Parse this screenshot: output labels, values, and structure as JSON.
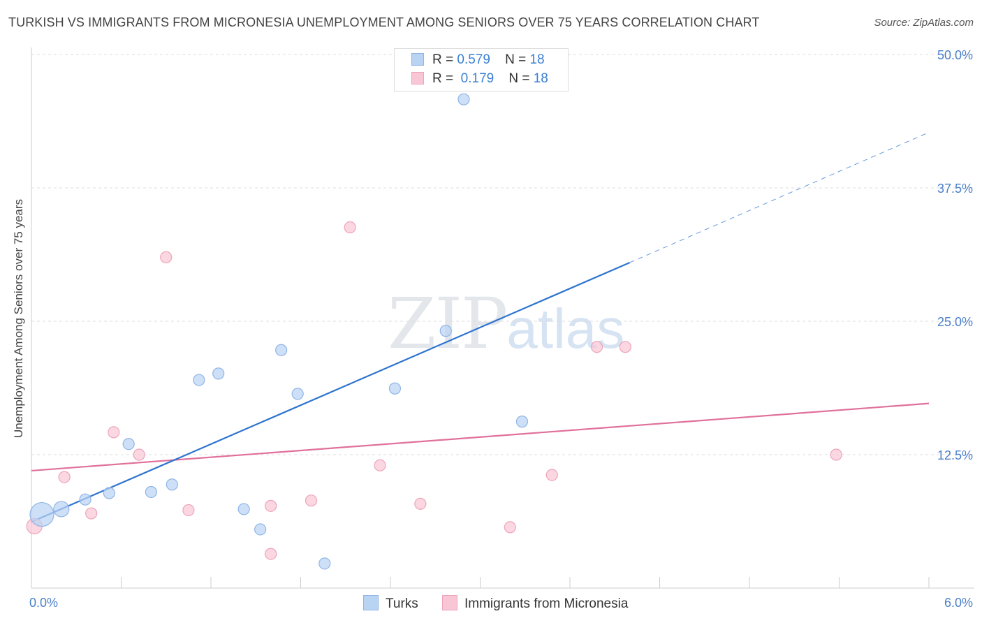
{
  "title": "TURKISH VS IMMIGRANTS FROM MICRONESIA UNEMPLOYMENT AMONG SENIORS OVER 75 YEARS CORRELATION CHART",
  "source": "Source: ZipAtlas.com",
  "watermark": {
    "zip": "ZIP",
    "atlas": "atlas"
  },
  "legend": {
    "turks": {
      "r_label": "R =",
      "r_value": "0.579",
      "n_label": "N =",
      "n_value": "18"
    },
    "micronesia": {
      "r_label": "R =",
      "r_value": "0.179",
      "n_label": "N =",
      "n_value": "18"
    }
  },
  "colors": {
    "turks_fill": "#b9d3f3",
    "turks_stroke": "#8fb5e6",
    "turks_line": "#2e74d0",
    "micro_fill": "#f9c6d5",
    "micro_stroke": "#eea3ba",
    "micro_line": "#e0709a",
    "grid": "#dddddd",
    "axis": "#cccccc"
  },
  "chart_data": {
    "type": "scatter",
    "title": "TURKISH VS IMMIGRANTS FROM MICRONESIA UNEMPLOYMENT AMONG SENIORS OVER 75 YEARS CORRELATION CHART",
    "xlabel": "",
    "ylabel": "Unemployment Among Seniors over 75 years",
    "xlim": [
      0,
      6
    ],
    "ylim": [
      0,
      50
    ],
    "x_tick_labels": [
      "0.0%",
      "6.0%"
    ],
    "y_ticks": [
      12.5,
      25.0,
      37.5,
      50.0
    ],
    "y_tick_labels": [
      "12.5%",
      "25.0%",
      "37.5%",
      "50.0%"
    ],
    "series": [
      {
        "name": "Turks",
        "points": [
          {
            "x": 0.07,
            "y": 6.9,
            "size": "large"
          },
          {
            "x": 0.2,
            "y": 7.4,
            "size": "medium"
          },
          {
            "x": 0.36,
            "y": 8.3,
            "size": "normal"
          },
          {
            "x": 0.52,
            "y": 8.9,
            "size": "normal"
          },
          {
            "x": 0.65,
            "y": 13.5,
            "size": "normal"
          },
          {
            "x": 0.8,
            "y": 9.0,
            "size": "normal"
          },
          {
            "x": 0.94,
            "y": 9.7,
            "size": "normal"
          },
          {
            "x": 1.12,
            "y": 19.5,
            "size": "normal"
          },
          {
            "x": 1.25,
            "y": 20.1,
            "size": "normal"
          },
          {
            "x": 1.42,
            "y": 7.4,
            "size": "normal"
          },
          {
            "x": 1.53,
            "y": 5.5,
            "size": "normal"
          },
          {
            "x": 1.67,
            "y": 22.3,
            "size": "normal"
          },
          {
            "x": 1.78,
            "y": 18.2,
            "size": "normal"
          },
          {
            "x": 1.96,
            "y": 2.3,
            "size": "normal"
          },
          {
            "x": 2.43,
            "y": 18.7,
            "size": "normal"
          },
          {
            "x": 2.77,
            "y": 24.1,
            "size": "normal"
          },
          {
            "x": 2.89,
            "y": 45.8,
            "size": "normal"
          },
          {
            "x": 3.28,
            "y": 15.6,
            "size": "normal"
          }
        ],
        "trend": {
          "x": [
            0.0,
            4.0
          ],
          "y": [
            6.2,
            30.5
          ],
          "dashed_x": [
            4.0,
            6.0
          ],
          "dashed_y": [
            30.5,
            42.7
          ]
        }
      },
      {
        "name": "Immigrants from Micronesia",
        "points": [
          {
            "x": 0.02,
            "y": 5.8,
            "size": "medium"
          },
          {
            "x": 0.22,
            "y": 10.4,
            "size": "normal"
          },
          {
            "x": 0.4,
            "y": 7.0,
            "size": "normal"
          },
          {
            "x": 0.55,
            "y": 14.6,
            "size": "normal"
          },
          {
            "x": 0.72,
            "y": 12.5,
            "size": "normal"
          },
          {
            "x": 0.9,
            "y": 31.0,
            "size": "normal"
          },
          {
            "x": 1.05,
            "y": 7.3,
            "size": "normal"
          },
          {
            "x": 1.6,
            "y": 3.2,
            "size": "normal"
          },
          {
            "x": 1.6,
            "y": 7.7,
            "size": "normal"
          },
          {
            "x": 1.87,
            "y": 8.2,
            "size": "normal"
          },
          {
            "x": 2.13,
            "y": 33.8,
            "size": "normal"
          },
          {
            "x": 2.33,
            "y": 11.5,
            "size": "normal"
          },
          {
            "x": 2.6,
            "y": 7.9,
            "size": "normal"
          },
          {
            "x": 3.2,
            "y": 5.7,
            "size": "normal"
          },
          {
            "x": 3.48,
            "y": 10.6,
            "size": "normal"
          },
          {
            "x": 3.78,
            "y": 22.6,
            "size": "normal"
          },
          {
            "x": 3.97,
            "y": 22.6,
            "size": "normal"
          },
          {
            "x": 5.38,
            "y": 12.5,
            "size": "normal"
          }
        ],
        "trend": {
          "x": [
            0.0,
            6.0
          ],
          "y": [
            11.0,
            17.3
          ]
        }
      }
    ],
    "legend": [
      "Turks",
      "Immigrants from Micronesia"
    ]
  }
}
